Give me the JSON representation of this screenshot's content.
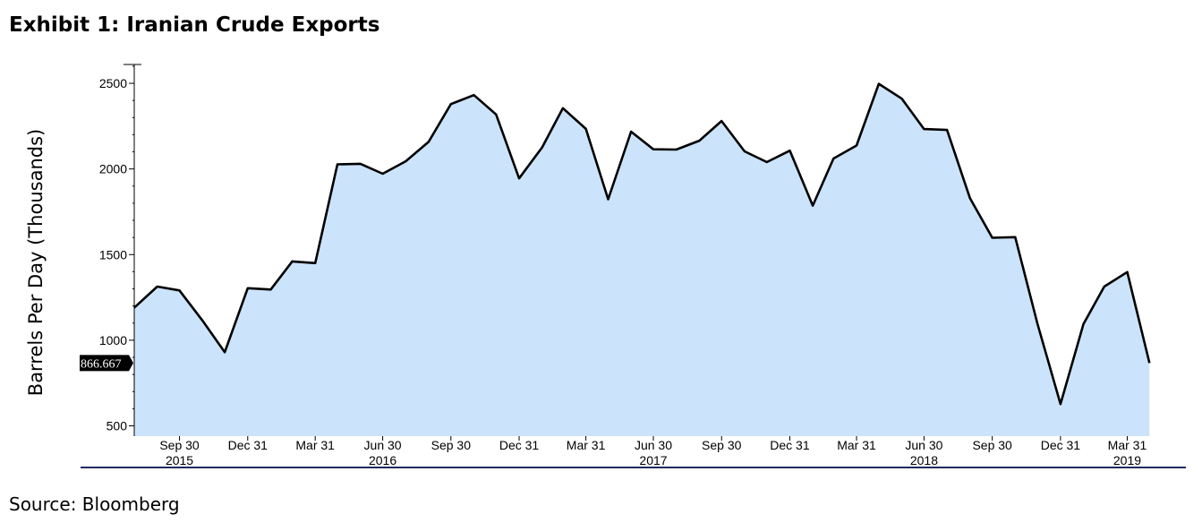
{
  "title": "Exhibit 1: Iranian Crude Exports",
  "source": "Source: Bloomberg",
  "chart_data": {
    "type": "area",
    "title": "Exhibit 1: Iranian Crude Exports",
    "xlabel": "",
    "ylabel": "Barrels Per Day (Thousands)",
    "ylim": [
      440,
      2610
    ],
    "xlim": [
      "2015-07-31",
      "2019-05-31"
    ],
    "y_ticks": [
      500,
      1000,
      1500,
      2000,
      2500
    ],
    "x_ticks": [
      {
        "date": "2015-09-30",
        "label": "Sep 30",
        "year": "2015"
      },
      {
        "date": "2015-12-31",
        "label": "Dec 31",
        "year": ""
      },
      {
        "date": "2016-03-31",
        "label": "Mar 31",
        "year": ""
      },
      {
        "date": "2016-06-30",
        "label": "Jun 30",
        "year": "2016"
      },
      {
        "date": "2016-09-30",
        "label": "Sep 30",
        "year": ""
      },
      {
        "date": "2016-12-31",
        "label": "Dec 31",
        "year": ""
      },
      {
        "date": "2017-03-31",
        "label": "Mar 31",
        "year": ""
      },
      {
        "date": "2017-06-30",
        "label": "Jun 30",
        "year": "2017"
      },
      {
        "date": "2017-09-30",
        "label": "Sep 30",
        "year": ""
      },
      {
        "date": "2017-12-31",
        "label": "Dec 31",
        "year": ""
      },
      {
        "date": "2018-03-31",
        "label": "Mar 31",
        "year": ""
      },
      {
        "date": "2018-06-30",
        "label": "Jun 30",
        "year": "2018"
      },
      {
        "date": "2018-09-30",
        "label": "Sep 30",
        "year": ""
      },
      {
        "date": "2018-12-31",
        "label": "Dec 31",
        "year": ""
      },
      {
        "date": "2019-03-31",
        "label": "Mar 31",
        "year": "2019"
      }
    ],
    "grid": false,
    "legend": "none",
    "fill_color": "#cce4fb",
    "line_color": "#000000",
    "last_value_label": "866.667",
    "series": [
      {
        "name": "",
        "x": [
          "2015-07-31",
          "2015-08-31",
          "2015-09-30",
          "2015-10-31",
          "2015-11-30",
          "2015-12-31",
          "2016-01-31",
          "2016-02-29",
          "2016-03-31",
          "2016-04-30",
          "2016-05-31",
          "2016-06-30",
          "2016-07-31",
          "2016-08-31",
          "2016-09-30",
          "2016-10-31",
          "2016-11-30",
          "2016-12-31",
          "2017-01-31",
          "2017-02-28",
          "2017-03-31",
          "2017-04-30",
          "2017-05-31",
          "2017-06-30",
          "2017-07-31",
          "2017-08-31",
          "2017-09-30",
          "2017-10-31",
          "2017-11-30",
          "2017-12-31",
          "2018-01-31",
          "2018-02-28",
          "2018-03-31",
          "2018-04-30",
          "2018-05-31",
          "2018-06-30",
          "2018-07-31",
          "2018-08-31",
          "2018-09-30",
          "2018-10-31",
          "2018-11-30",
          "2018-12-31",
          "2019-01-31",
          "2019-02-28",
          "2019-03-31",
          "2019-04-30"
        ],
        "values": [
          1190,
          1313,
          1291,
          1115,
          930,
          1304,
          1296,
          1460,
          1450,
          2027,
          2030,
          1972,
          2045,
          2158,
          2379,
          2431,
          2318,
          1945,
          2126,
          2355,
          2234,
          1823,
          2218,
          2115,
          2113,
          2165,
          2280,
          2103,
          2040,
          2107,
          1786,
          2061,
          2137,
          2497,
          2410,
          2233,
          2228,
          1829,
          1598,
          1602,
          1095,
          627,
          1095,
          1313,
          1398,
          867
        ]
      }
    ]
  }
}
